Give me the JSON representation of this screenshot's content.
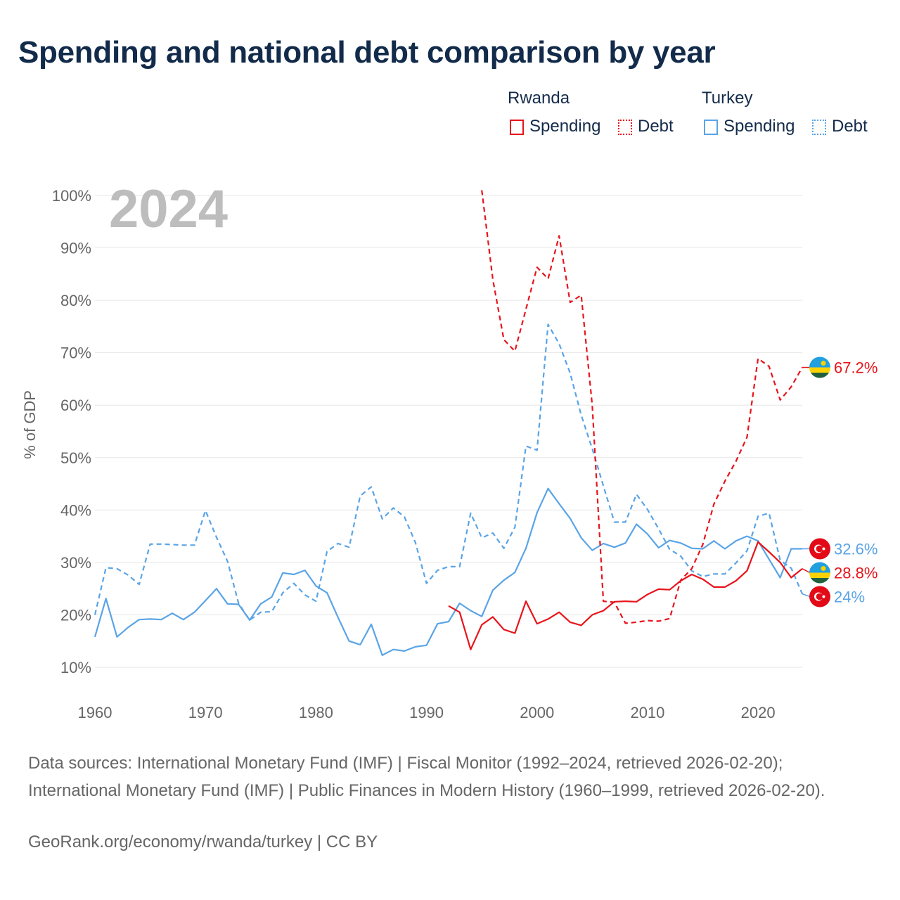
{
  "title": "Spending and national debt comparison by year",
  "legend": {
    "groups": [
      {
        "country": "Rwanda",
        "color": "#e8141b",
        "spending_label": "Spending",
        "debt_label": "Debt"
      },
      {
        "country": "Turkey",
        "color": "#5aa4e6",
        "spending_label": "Spending",
        "debt_label": "Debt"
      }
    ]
  },
  "year_watermark": "2024",
  "footer": {
    "sources": "Data sources: International Monetary Fund (IMF) | Fiscal Monitor (1992–2024, retrieved 2026-02-20); International Monetary Fund (IMF) | Public Finances in Modern History (1960–1999, retrieved 2026-02-20).",
    "link": "GeoRank.org/economy/rwanda/turkey | CC BY"
  },
  "chart_data": {
    "type": "line",
    "title": "Spending and national debt comparison by year",
    "xlabel": "",
    "ylabel": "% of GDP",
    "xlim": [
      1960,
      2024
    ],
    "ylim": [
      10,
      100
    ],
    "x_ticks": [
      1960,
      1970,
      1980,
      1990,
      2000,
      2010,
      2020
    ],
    "y_ticks": [
      10,
      20,
      30,
      40,
      50,
      60,
      70,
      80,
      90,
      100
    ],
    "y_tick_labels": [
      "10%",
      "20%",
      "30%",
      "40%",
      "50%",
      "60%",
      "70%",
      "80%",
      "90%",
      "100%"
    ],
    "grid": true,
    "series": [
      {
        "name": "Turkey Spending",
        "country": "Turkey",
        "color": "#5aa4e6",
        "style": "solid",
        "x": [
          1960,
          1961,
          1962,
          1963,
          1964,
          1965,
          1966,
          1967,
          1968,
          1969,
          1970,
          1971,
          1972,
          1973,
          1974,
          1975,
          1976,
          1977,
          1978,
          1979,
          1980,
          1981,
          1982,
          1983,
          1984,
          1985,
          1986,
          1987,
          1988,
          1989,
          1990,
          1991,
          1992,
          1993,
          1994,
          1995,
          1996,
          1997,
          1998,
          1999,
          2000,
          2001,
          2002,
          2003,
          2004,
          2005,
          2006,
          2007,
          2008,
          2009,
          2010,
          2011,
          2012,
          2013,
          2014,
          2015,
          2016,
          2017,
          2018,
          2019,
          2020,
          2021,
          2022,
          2023,
          2024
        ],
        "values": [
          15.8,
          23.1,
          15.8,
          17.6,
          19.1,
          19.2,
          19.1,
          20.3,
          19.1,
          20.5,
          22.7,
          25.0,
          22.1,
          22.0,
          19.0,
          22.1,
          23.4,
          28.0,
          27.7,
          28.5,
          25.5,
          24.2,
          19.5,
          15.0,
          14.3,
          18.2,
          12.3,
          13.4,
          13.1,
          13.9,
          14.2,
          18.3,
          18.7,
          22.2,
          20.8,
          19.7,
          24.7,
          26.6,
          28.1,
          32.7,
          39.5,
          44.1,
          41.2,
          38.4,
          34.7,
          32.3,
          33.6,
          32.9,
          33.7,
          37.3,
          35.4,
          32.8,
          34.2,
          33.7,
          32.7,
          32.6,
          34.1,
          32.6,
          34.1,
          35.0,
          34.1,
          30.6,
          27.1,
          32.6,
          32.6
        ]
      },
      {
        "name": "Turkey Debt",
        "country": "Turkey",
        "color": "#5aa4e6",
        "style": "dashed",
        "x": [
          1960,
          1961,
          1962,
          1963,
          1964,
          1965,
          1966,
          1967,
          1968,
          1969,
          1970,
          1971,
          1972,
          1973,
          1974,
          1975,
          1976,
          1977,
          1978,
          1979,
          1980,
          1981,
          1982,
          1983,
          1984,
          1985,
          1986,
          1987,
          1988,
          1989,
          1990,
          1991,
          1992,
          1993,
          1994,
          1995,
          1996,
          1997,
          1998,
          1999,
          2000,
          2001,
          2002,
          2003,
          2004,
          2005,
          2006,
          2007,
          2008,
          2009,
          2010,
          2011,
          2012,
          2013,
          2014,
          2015,
          2016,
          2017,
          2018,
          2019,
          2020,
          2021,
          2022,
          2023,
          2024
        ],
        "values": [
          20.0,
          29.0,
          28.8,
          27.6,
          25.8,
          33.5,
          33.5,
          33.4,
          33.3,
          33.3,
          39.9,
          34.8,
          30.2,
          22.2,
          19.0,
          20.5,
          20.6,
          24.2,
          26.0,
          23.8,
          22.6,
          32.1,
          33.6,
          32.9,
          42.7,
          44.4,
          38.3,
          40.4,
          38.7,
          33.8,
          26.0,
          28.5,
          29.2,
          29.2,
          39.4,
          34.7,
          35.6,
          32.7,
          36.7,
          52.2,
          51.4,
          75.4,
          71.7,
          66.1,
          58.1,
          51.7,
          44.6,
          37.7,
          37.7,
          43.0,
          40.1,
          36.4,
          32.5,
          31.2,
          28.4,
          27.3,
          27.8,
          27.8,
          29.9,
          32.2,
          38.8,
          39.4,
          30.4,
          28.9,
          24.0
        ]
      },
      {
        "name": "Rwanda Spending",
        "country": "Rwanda",
        "color": "#e8141b",
        "style": "solid",
        "x": [
          1992,
          1993,
          1994,
          1995,
          1996,
          1997,
          1998,
          1999,
          2000,
          2001,
          2002,
          2003,
          2004,
          2005,
          2006,
          2007,
          2008,
          2009,
          2010,
          2011,
          2012,
          2013,
          2014,
          2015,
          2016,
          2017,
          2018,
          2019,
          2020,
          2021,
          2022,
          2023,
          2024
        ],
        "values": [
          21.7,
          20.5,
          13.4,
          18.1,
          19.6,
          17.2,
          16.5,
          22.6,
          18.3,
          19.2,
          20.5,
          18.6,
          18.0,
          20.0,
          20.8,
          22.5,
          22.6,
          22.5,
          23.9,
          24.9,
          24.8,
          26.5,
          27.7,
          26.8,
          25.3,
          25.3,
          26.5,
          28.4,
          33.9,
          32.0,
          30.0,
          27.1,
          28.8
        ]
      },
      {
        "name": "Rwanda Debt",
        "country": "Rwanda",
        "color": "#e8141b",
        "style": "dashed",
        "x": [
          1995,
          1996,
          1997,
          1998,
          1999,
          2000,
          2001,
          2002,
          2003,
          2004,
          2005,
          2006,
          2007,
          2008,
          2009,
          2010,
          2011,
          2012,
          2013,
          2014,
          2015,
          2016,
          2017,
          2018,
          2019,
          2020,
          2021,
          2022,
          2023,
          2024
        ],
        "values": [
          101.0,
          84.0,
          72.5,
          70.3,
          78.3,
          86.3,
          84.1,
          92.3,
          79.6,
          81.0,
          60.0,
          22.6,
          22.4,
          18.4,
          18.6,
          18.9,
          18.8,
          19.3,
          26.6,
          28.8,
          33.4,
          41.1,
          45.5,
          49.3,
          53.9,
          68.9,
          67.4,
          61.0,
          63.5,
          67.2
        ]
      }
    ],
    "end_labels": [
      {
        "series": "Rwanda Debt",
        "text": "67.2%",
        "flag": "Rwanda"
      },
      {
        "series": "Turkey Spending",
        "text": "32.6%",
        "flag": "Turkey"
      },
      {
        "series": "Rwanda Spending",
        "text": "28.8%",
        "flag": "Rwanda"
      },
      {
        "series": "Turkey Debt",
        "text": "24%",
        "flag": "Turkey"
      }
    ]
  }
}
